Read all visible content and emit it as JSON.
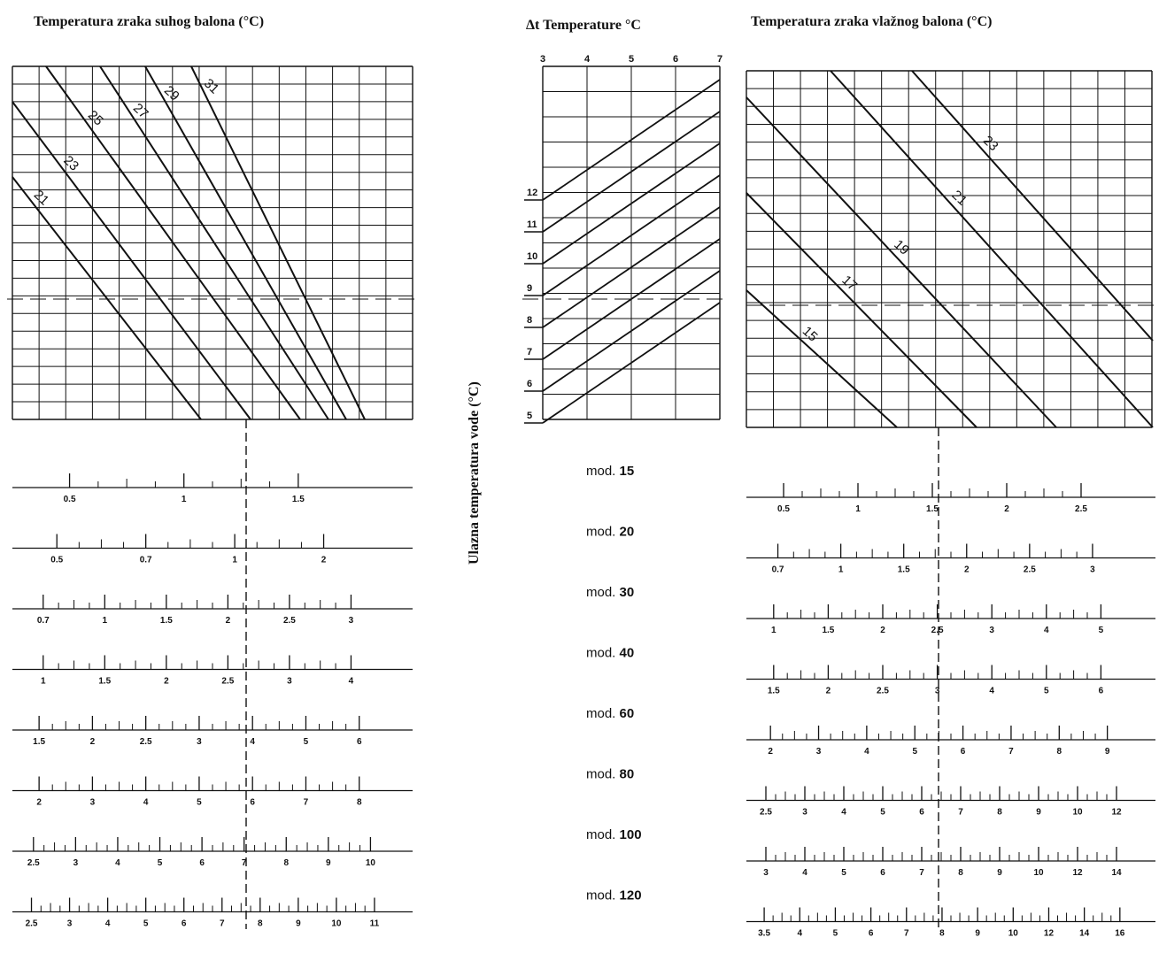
{
  "titles": {
    "dry_bulb": "Temperatura zraka suhog balona (°C)",
    "delta_t": "Δt Temperature °C",
    "wet_bulb": "Temperatura zraka vlažnog balona (°C)",
    "water_inlet": "Ulazna temperatura vode (°C)"
  },
  "models": [
    {
      "prefix": "mod.",
      "number": "15"
    },
    {
      "prefix": "mod.",
      "number": "20"
    },
    {
      "prefix": "mod.",
      "number": "30"
    },
    {
      "prefix": "mod.",
      "number": "40"
    },
    {
      "prefix": "mod.",
      "number": "60"
    },
    {
      "prefix": "mod.",
      "number": "80"
    },
    {
      "prefix": "mod.",
      "number": "100"
    },
    {
      "prefix": "mod.",
      "number": "120"
    }
  ],
  "chart_data": [
    {
      "type": "line",
      "series_labels": [
        "21",
        "23",
        "25",
        "27",
        "29",
        "31"
      ],
      "grid": true,
      "reference_line": "dashed horizontal"
    },
    {
      "type": "line",
      "xaxis_ticks": [
        "3",
        "4",
        "5",
        "6",
        "7"
      ],
      "yaxis_ticks": [
        "12",
        "11",
        "10",
        "9",
        "8",
        "7",
        "6",
        "5"
      ],
      "grid": true,
      "reference_line": "dashed horizontal"
    },
    {
      "type": "line",
      "series_labels": [
        "15",
        "17",
        "19",
        "21",
        "23"
      ],
      "grid": true,
      "reference_line": "dashed horizontal"
    },
    {
      "type": "scale",
      "scales": [
        [
          "0.5",
          "1",
          "1.5"
        ],
        [
          "0.5",
          "0.7",
          "1",
          "2"
        ],
        [
          "0.7",
          "1",
          "1.5",
          "2",
          "2.5",
          "3"
        ],
        [
          "1",
          "1.5",
          "2",
          "2.5",
          "3",
          "4"
        ],
        [
          "1.5",
          "2",
          "2.5",
          "3",
          "4",
          "5",
          "6"
        ],
        [
          "2",
          "3",
          "4",
          "5",
          "6",
          "7",
          "8"
        ],
        [
          "2.5",
          "3",
          "4",
          "5",
          "6",
          "7",
          "8",
          "9",
          "10"
        ],
        [
          "2.5",
          "3",
          "4",
          "5",
          "6",
          "7",
          "8",
          "9",
          "10",
          "11"
        ]
      ]
    },
    {
      "type": "scale",
      "scales": [
        [
          "0.5",
          "1",
          "1.5",
          "2",
          "2.5"
        ],
        [
          "0.7",
          "1",
          "1.5",
          "2",
          "2.5",
          "3"
        ],
        [
          "1",
          "1.5",
          "2",
          "2.5",
          "3",
          "4",
          "5"
        ],
        [
          "1.5",
          "2",
          "2.5",
          "3",
          "4",
          "5",
          "6"
        ],
        [
          "2",
          "3",
          "4",
          "5",
          "6",
          "7",
          "8",
          "9"
        ],
        [
          "2.5",
          "3",
          "4",
          "5",
          "6",
          "7",
          "8",
          "9",
          "10",
          "12"
        ],
        [
          "3",
          "4",
          "5",
          "6",
          "7",
          "8",
          "9",
          "10",
          "12",
          "14"
        ],
        [
          "3.5",
          "4",
          "5",
          "6",
          "7",
          "8",
          "9",
          "10",
          "12",
          "14",
          "16"
        ]
      ]
    }
  ]
}
